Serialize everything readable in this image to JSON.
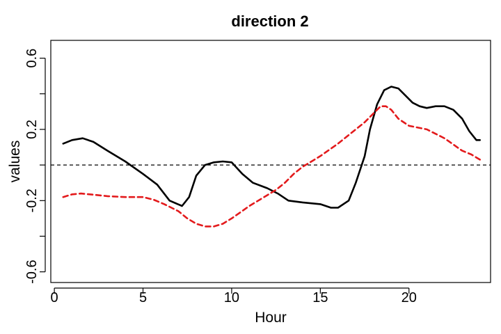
{
  "chart_data": {
    "type": "line",
    "title": "direction 2",
    "xlabel": "Hour",
    "ylabel": "values",
    "xlim": [
      -0.2,
      24.6
    ],
    "ylim": [
      -0.66,
      0.7
    ],
    "x_ticks": [
      0,
      5,
      10,
      15,
      20
    ],
    "x_tick_labels": [
      "0",
      "5",
      "10",
      "15",
      "20"
    ],
    "y_ticks": [
      -0.6,
      -0.4,
      -0.2,
      0.0,
      0.2,
      0.4,
      0.6
    ],
    "y_tick_labels": [
      "-0.6",
      "",
      "-0.2",
      "",
      "0.2",
      "",
      "0.6"
    ],
    "reference_line": {
      "y": 0.0,
      "style": "dashed",
      "color": "#000000"
    },
    "grid": false,
    "legend": "none",
    "series": [
      {
        "color": "#000000",
        "style": "solid",
        "x": [
          0.5,
          1.0,
          1.6,
          2.2,
          3.0,
          4.0,
          5.0,
          5.8,
          6.5,
          7.2,
          7.6,
          8.0,
          8.5,
          9.0,
          9.5,
          10.0,
          10.6,
          11.2,
          12.0,
          12.6,
          13.2,
          14.0,
          15.0,
          15.6,
          16.0,
          16.6,
          17.0,
          17.5,
          17.8,
          18.2,
          18.6,
          19.0,
          19.4,
          19.8,
          20.2,
          20.6,
          21.0,
          21.5,
          22.0,
          22.5,
          23.0,
          23.4,
          23.8,
          24.0
        ],
        "y": [
          0.12,
          0.14,
          0.15,
          0.13,
          0.08,
          0.02,
          -0.05,
          -0.11,
          -0.2,
          -0.23,
          -0.18,
          -0.06,
          0.0,
          0.015,
          0.02,
          0.015,
          -0.05,
          -0.1,
          -0.13,
          -0.16,
          -0.2,
          -0.21,
          -0.22,
          -0.24,
          -0.24,
          -0.2,
          -0.1,
          0.05,
          0.2,
          0.34,
          0.42,
          0.44,
          0.43,
          0.39,
          0.35,
          0.33,
          0.32,
          0.33,
          0.33,
          0.31,
          0.26,
          0.19,
          0.14,
          0.14
        ]
      },
      {
        "color": "#e31a1c",
        "style": "dashed",
        "x": [
          0.5,
          1.0,
          1.5,
          2.0,
          3.0,
          4.0,
          5.0,
          5.6,
          6.2,
          7.0,
          7.5,
          8.0,
          8.5,
          9.0,
          9.5,
          10.0,
          11.0,
          12.0,
          12.5,
          13.0,
          13.5,
          14.0,
          15.0,
          16.0,
          17.0,
          17.5,
          18.0,
          18.4,
          18.7,
          19.0,
          19.4,
          20.0,
          21.0,
          22.0,
          23.0,
          23.5,
          24.0
        ],
        "y": [
          -0.18,
          -0.165,
          -0.16,
          -0.165,
          -0.175,
          -0.18,
          -0.18,
          -0.195,
          -0.22,
          -0.26,
          -0.3,
          -0.33,
          -0.345,
          -0.345,
          -0.33,
          -0.3,
          -0.23,
          -0.17,
          -0.14,
          -0.1,
          -0.05,
          -0.01,
          0.05,
          0.12,
          0.2,
          0.24,
          0.29,
          0.33,
          0.33,
          0.31,
          0.26,
          0.22,
          0.2,
          0.15,
          0.08,
          0.06,
          0.03
        ]
      }
    ]
  }
}
